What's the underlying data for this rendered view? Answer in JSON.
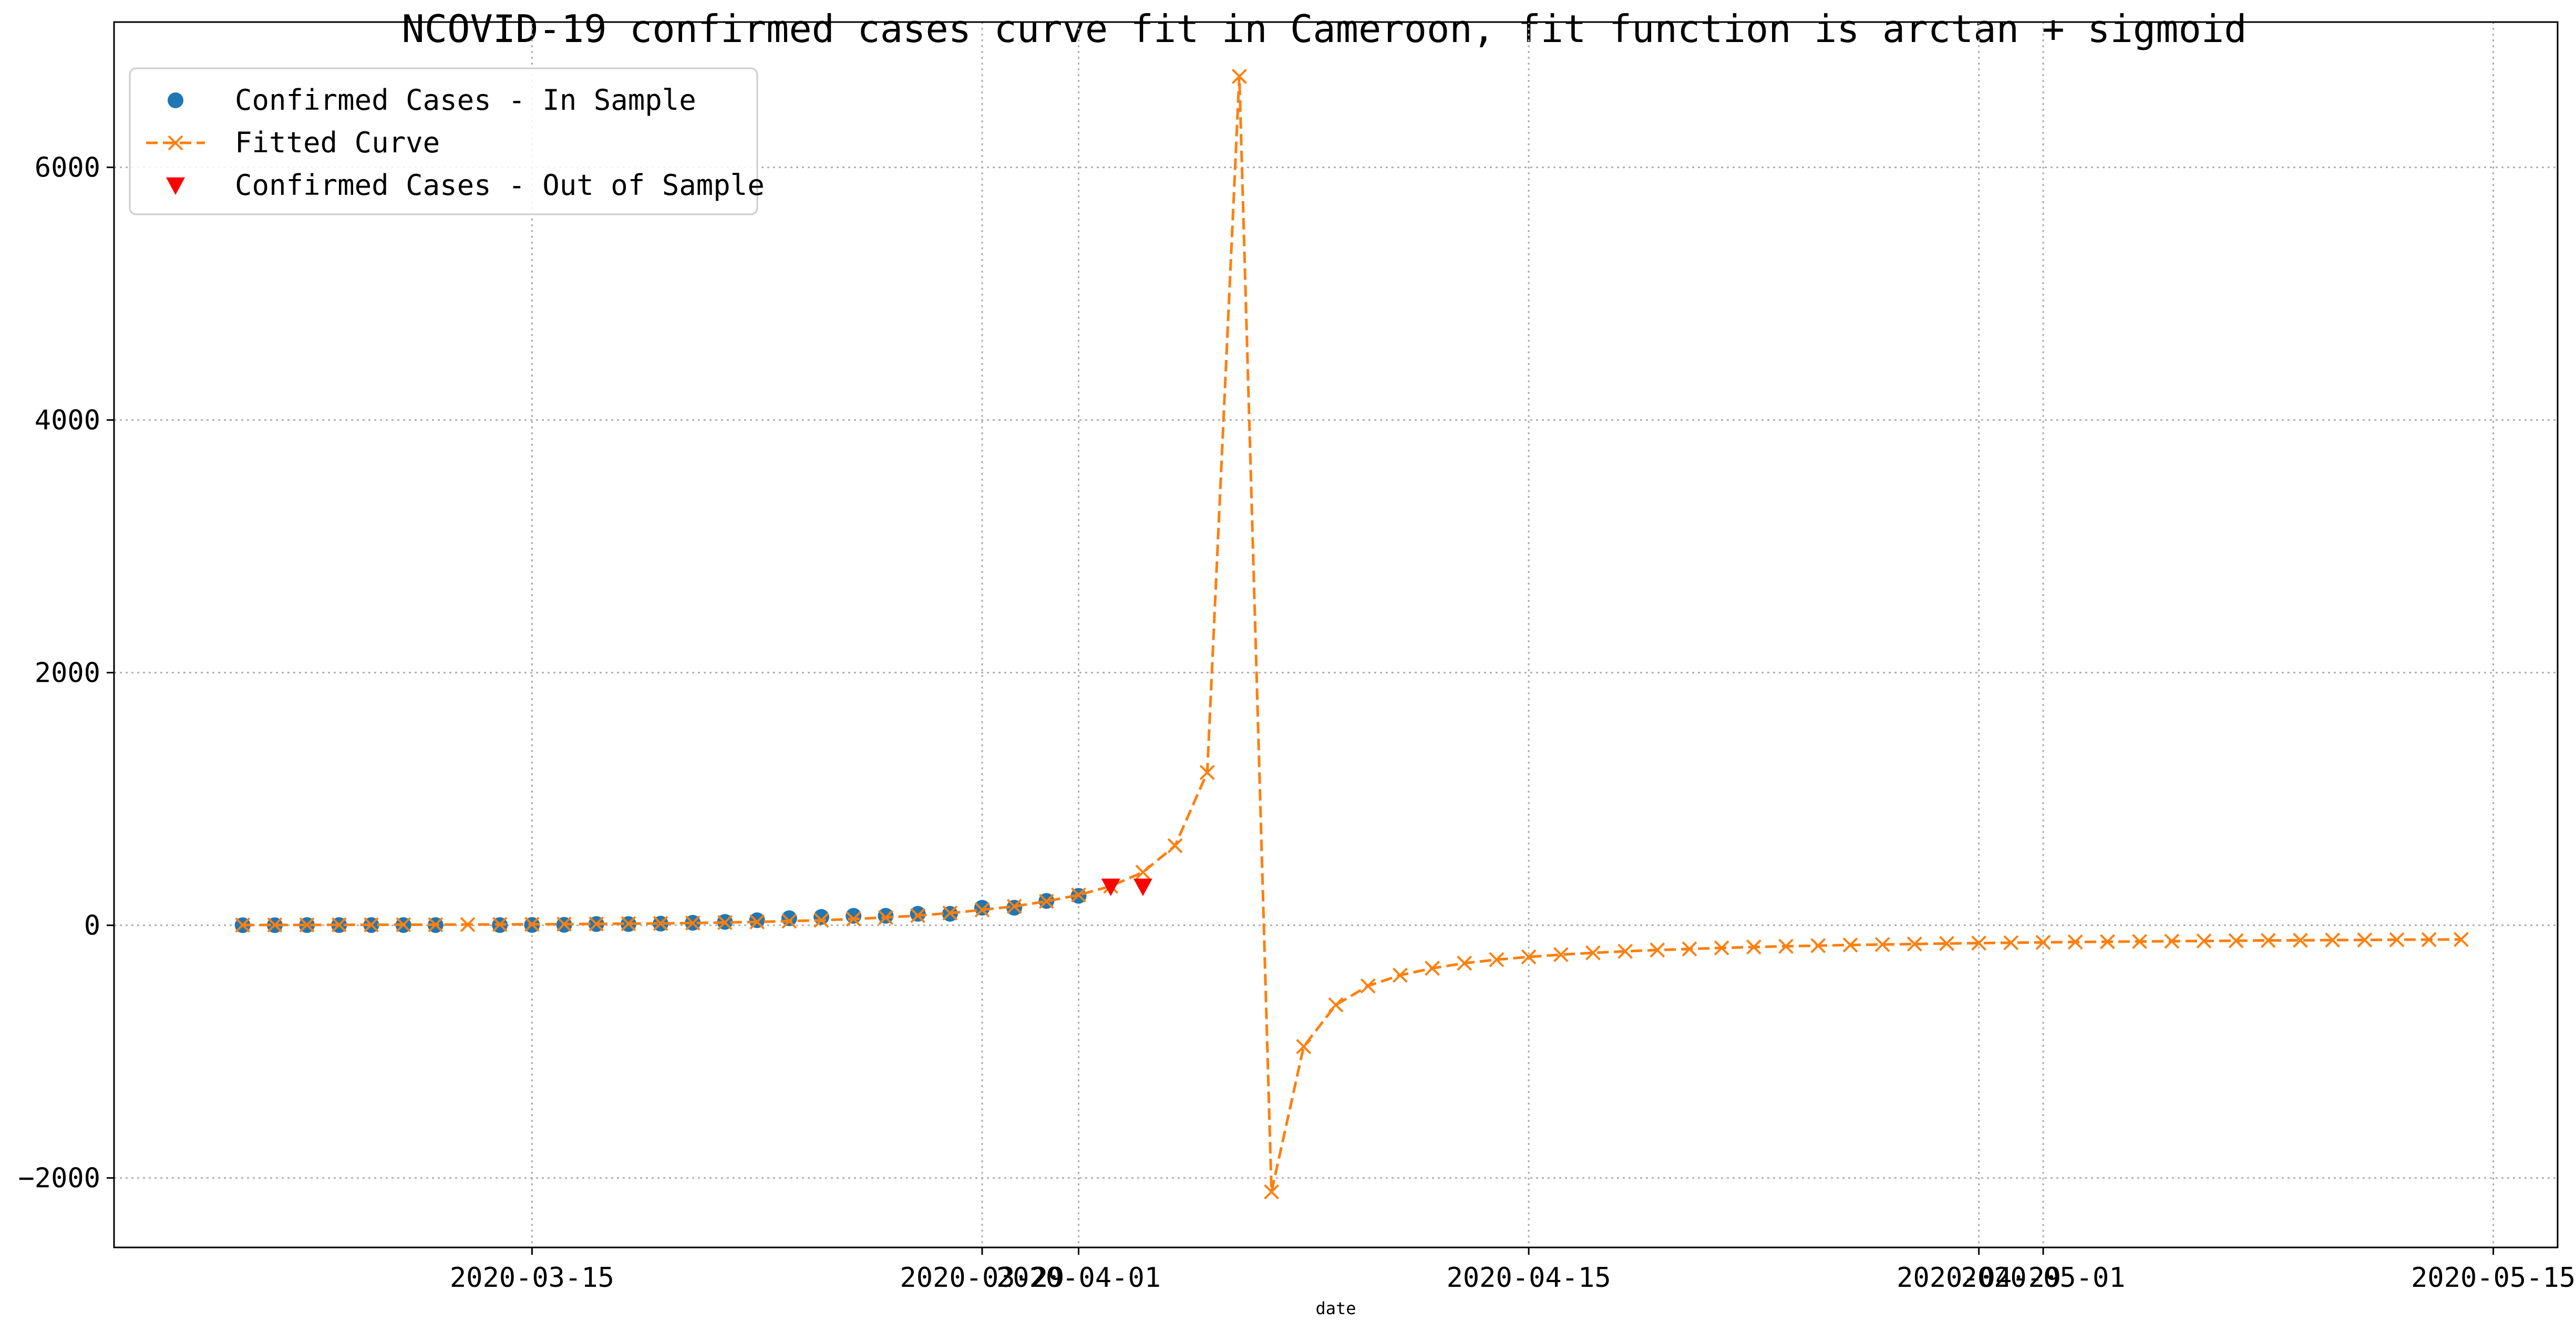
{
  "chart_data": {
    "type": "line",
    "title": "NCOVID-19 confirmed cases curve fit in Cameroon, fit function is arctan + sigmoid",
    "xlabel": "date",
    "ylabel": "",
    "x_range": [
      "2020-03-02",
      "2020-05-17"
    ],
    "ylim": [
      -2550,
      7150
    ],
    "grid": true,
    "legend_position": "top-left",
    "x_ticks": [
      {
        "date": "2020-03-15",
        "label": "2020-03-15"
      },
      {
        "date": "2020-03-29",
        "label": "2020-03-29"
      },
      {
        "date": "2020-04-01",
        "label": "2020-04-01"
      },
      {
        "date": "2020-04-15",
        "label": "2020-04-15"
      },
      {
        "date": "2020-04-29",
        "label": "2020-04-29"
      },
      {
        "date": "2020-05-01",
        "label": "2020-05-01"
      },
      {
        "date": "2020-05-15",
        "label": "2020-05-15"
      }
    ],
    "y_ticks": [
      {
        "value": -2000,
        "label": "−2000"
      },
      {
        "value": 0,
        "label": "0"
      },
      {
        "value": 2000,
        "label": "2000"
      },
      {
        "value": 4000,
        "label": "4000"
      },
      {
        "value": 6000,
        "label": "6000"
      }
    ],
    "series": [
      {
        "name": "Confirmed Cases - In Sample",
        "style": "dots",
        "color": "#1f77b4",
        "points": [
          [
            "2020-03-06",
            1
          ],
          [
            "2020-03-07",
            1
          ],
          [
            "2020-03-08",
            2
          ],
          [
            "2020-03-09",
            2
          ],
          [
            "2020-03-10",
            2
          ],
          [
            "2020-03-11",
            2
          ],
          [
            "2020-03-12",
            2
          ],
          [
            "2020-03-14",
            2
          ],
          [
            "2020-03-15",
            3
          ],
          [
            "2020-03-16",
            4
          ],
          [
            "2020-03-17",
            10
          ],
          [
            "2020-03-18",
            10
          ],
          [
            "2020-03-19",
            13
          ],
          [
            "2020-03-20",
            20
          ],
          [
            "2020-03-21",
            27
          ],
          [
            "2020-03-22",
            40
          ],
          [
            "2020-03-23",
            56
          ],
          [
            "2020-03-24",
            66
          ],
          [
            "2020-03-25",
            75
          ],
          [
            "2020-03-26",
            75
          ],
          [
            "2020-03-27",
            91
          ],
          [
            "2020-03-28",
            91
          ],
          [
            "2020-03-29",
            139
          ],
          [
            "2020-03-30",
            139
          ],
          [
            "2020-03-31",
            193
          ],
          [
            "2020-04-01",
            233
          ]
        ]
      },
      {
        "name": "Fitted Curve",
        "style": "dashed-x",
        "color": "#ff7f0e",
        "points": [
          [
            "2020-03-06",
            2
          ],
          [
            "2020-03-07",
            3
          ],
          [
            "2020-03-08",
            3
          ],
          [
            "2020-03-09",
            4
          ],
          [
            "2020-03-10",
            4
          ],
          [
            "2020-03-11",
            5
          ],
          [
            "2020-03-12",
            5
          ],
          [
            "2020-03-13",
            6
          ],
          [
            "2020-03-14",
            7
          ],
          [
            "2020-03-15",
            8
          ],
          [
            "2020-03-16",
            9
          ],
          [
            "2020-03-17",
            11
          ],
          [
            "2020-03-18",
            13
          ],
          [
            "2020-03-19",
            15
          ],
          [
            "2020-03-20",
            18
          ],
          [
            "2020-03-21",
            22
          ],
          [
            "2020-03-22",
            27
          ],
          [
            "2020-03-23",
            33
          ],
          [
            "2020-03-24",
            40
          ],
          [
            "2020-03-25",
            50
          ],
          [
            "2020-03-26",
            62
          ],
          [
            "2020-03-27",
            77
          ],
          [
            "2020-03-28",
            97
          ],
          [
            "2020-03-29",
            122
          ],
          [
            "2020-03-30",
            150
          ],
          [
            "2020-03-31",
            190
          ],
          [
            "2020-04-01",
            240
          ],
          [
            "2020-04-02",
            310
          ],
          [
            "2020-04-03",
            420
          ],
          [
            "2020-04-04",
            630
          ],
          [
            "2020-04-05",
            1210
          ],
          [
            "2020-04-06",
            6720
          ],
          [
            "2020-04-07",
            -2110
          ],
          [
            "2020-04-08",
            -960
          ],
          [
            "2020-04-09",
            -630
          ],
          [
            "2020-04-10",
            -480
          ],
          [
            "2020-04-11",
            -395
          ],
          [
            "2020-04-12",
            -340
          ],
          [
            "2020-04-13",
            -300
          ],
          [
            "2020-04-14",
            -272
          ],
          [
            "2020-04-15",
            -250
          ],
          [
            "2020-04-16",
            -232
          ],
          [
            "2020-04-17",
            -218
          ],
          [
            "2020-04-18",
            -206
          ],
          [
            "2020-04-19",
            -196
          ],
          [
            "2020-04-20",
            -187
          ],
          [
            "2020-04-21",
            -179
          ],
          [
            "2020-04-22",
            -172
          ],
          [
            "2020-04-23",
            -166
          ],
          [
            "2020-04-24",
            -161
          ],
          [
            "2020-04-25",
            -156
          ],
          [
            "2020-04-26",
            -152
          ],
          [
            "2020-04-27",
            -148
          ],
          [
            "2020-04-28",
            -144
          ],
          [
            "2020-04-29",
            -141
          ],
          [
            "2020-04-30",
            -138
          ],
          [
            "2020-05-01",
            -135
          ],
          [
            "2020-05-02",
            -132
          ],
          [
            "2020-05-03",
            -130
          ],
          [
            "2020-05-04",
            -128
          ],
          [
            "2020-05-05",
            -126
          ],
          [
            "2020-05-06",
            -124
          ],
          [
            "2020-05-07",
            -122
          ],
          [
            "2020-05-08",
            -120
          ],
          [
            "2020-05-09",
            -119
          ],
          [
            "2020-05-10",
            -117
          ],
          [
            "2020-05-11",
            -116
          ],
          [
            "2020-05-12",
            -114
          ],
          [
            "2020-05-13",
            -113
          ],
          [
            "2020-05-14",
            -112
          ]
        ]
      },
      {
        "name": "Confirmed Cases - Out of Sample",
        "style": "triangles",
        "color": "#ff0000",
        "points": [
          [
            "2020-04-02",
            306
          ],
          [
            "2020-04-03",
            306
          ]
        ]
      }
    ]
  }
}
